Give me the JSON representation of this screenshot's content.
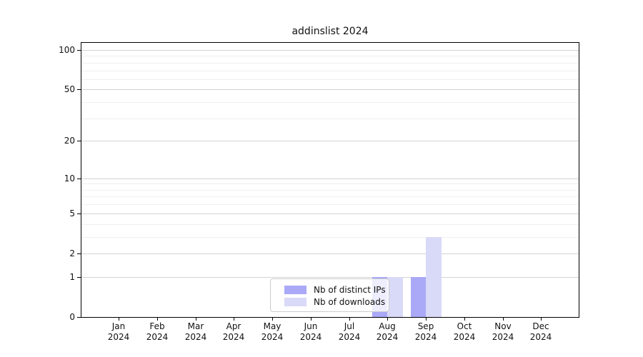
{
  "figure": {
    "title": "addinslist 2024"
  },
  "colors": {
    "distinct_ips": "#a9a9f7",
    "downloads": "#d9d9f8",
    "grid_major": "#d3d3d3",
    "grid_minor": "#efefef",
    "axis": "#000000",
    "legend_border": "#cccccc"
  },
  "y_axis": {
    "tick_labels": [
      "100",
      "50",
      "20",
      "10",
      "5",
      "2",
      "1",
      "0"
    ],
    "tick_values": [
      100,
      50,
      20,
      10,
      5,
      2,
      1,
      0
    ],
    "minor_gridline_values": [
      3,
      4,
      6,
      7,
      8,
      9,
      30,
      40,
      60,
      70,
      80,
      90
    ],
    "scale": "log1p"
  },
  "x_axis": {
    "months": [
      "Jan",
      "Feb",
      "Mar",
      "Apr",
      "May",
      "Jun",
      "Jul",
      "Aug",
      "Sep",
      "Oct",
      "Nov",
      "Dec"
    ],
    "year": "2024"
  },
  "legend": {
    "items": [
      {
        "label": "Nb of distinct IPs",
        "color": "#a9a9f7"
      },
      {
        "label": "Nb of downloads",
        "color": "#d9d9f8"
      }
    ]
  },
  "chart_data": {
    "type": "bar",
    "title": "addinslist 2024",
    "categories": [
      "Jan 2024",
      "Feb 2024",
      "Mar 2024",
      "Apr 2024",
      "May 2024",
      "Jun 2024",
      "Jul 2024",
      "Aug 2024",
      "Sep 2024",
      "Oct 2024",
      "Nov 2024",
      "Dec 2024"
    ],
    "series": [
      {
        "name": "Nb of distinct IPs",
        "color": "#a9a9f7",
        "values": [
          0,
          0,
          0,
          0,
          0,
          0,
          0,
          1,
          1,
          0,
          0,
          0
        ]
      },
      {
        "name": "Nb of downloads",
        "color": "#d9d9f8",
        "values": [
          0,
          0,
          0,
          0,
          0,
          0,
          0,
          1,
          3,
          0,
          0,
          0
        ]
      }
    ],
    "xlabel": "",
    "ylabel": "",
    "y_scale": "log1p",
    "y_ticks": [
      0,
      1,
      2,
      5,
      10,
      20,
      50,
      100
    ],
    "ylim": [
      0,
      115
    ],
    "grid": "horizontal",
    "legend_position": "inside-bottom-center"
  }
}
